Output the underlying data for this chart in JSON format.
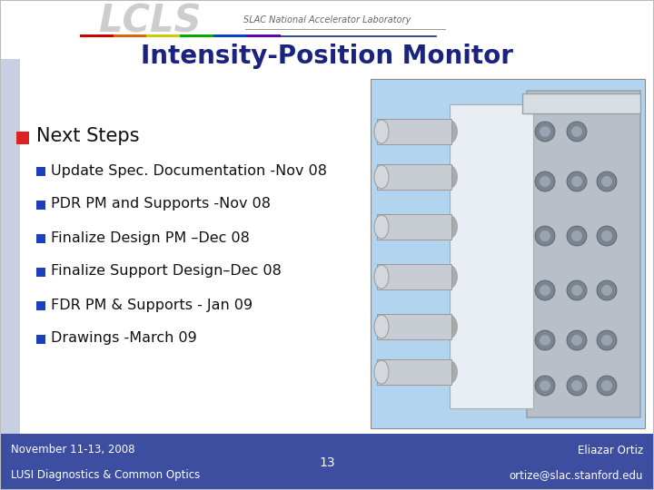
{
  "title": "Intensity-Position Monitor",
  "header_text": "SLAC National Accelerator Laboratory",
  "section_header": "Next Steps",
  "bullet_items": [
    "Update Spec. Documentation -Nov 08",
    "PDR PM and Supports -Nov 08",
    "Finalize Design PM –Dec 08",
    "Finalize Support Design–Dec 08",
    "FDR PM & Supports - Jan 09",
    "Drawings -March 09"
  ],
  "footer_left_line1": "November 11-13, 2008",
  "footer_left_line2": "LUSI Diagnostics & Common Optics",
  "footer_center": "13",
  "footer_right_line1": "Eliazar Ortiz",
  "footer_right_line2": "ortize@slac.stanford.edu",
  "bg_color": "#ffffff",
  "footer_bg_color": "#3d4ea0",
  "title_color": "#1a237e",
  "section_header_color": "#111111",
  "bullet_color": "#111111",
  "footer_text_color": "#ffffff",
  "red_square_color": "#dd2222",
  "blue_square_color": "#1a3fbf",
  "slide_border_color": "#bbbbbb",
  "gradient_left_color": "#9ea8cc",
  "gradient_bottom_color": "#8890c0",
  "img_bg_color": "#b3d4ef",
  "plate_color": "#b8bfc8",
  "plate_dark": "#9aa0aa",
  "plate_light": "#d8dde4",
  "white_part_color": "#e8eef4",
  "cylinder_color": "#c8cdd4",
  "hole_color": "#7a8490",
  "header_line_colors": [
    "#cc0000",
    "#dd6600",
    "#cccc00",
    "#00aa00",
    "#0044cc",
    "#6600bb"
  ]
}
